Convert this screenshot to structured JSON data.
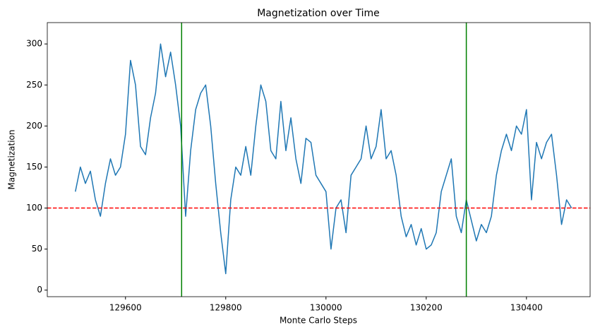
{
  "chart_data": {
    "type": "line",
    "title": "Magnetization over Time",
    "xlabel": "Monte Carlo Steps",
    "ylabel": "Magnetization",
    "x": [
      129500,
      129510,
      129520,
      129530,
      129540,
      129550,
      129560,
      129570,
      129580,
      129590,
      129600,
      129610,
      129620,
      129630,
      129640,
      129650,
      129660,
      129670,
      129680,
      129690,
      129700,
      129710,
      129720,
      129730,
      129740,
      129750,
      129760,
      129770,
      129780,
      129790,
      129800,
      129810,
      129820,
      129830,
      129840,
      129850,
      129860,
      129870,
      129880,
      129890,
      129900,
      129910,
      129920,
      129930,
      129940,
      129950,
      129960,
      129970,
      129980,
      129990,
      130000,
      130010,
      130020,
      130030,
      130040,
      130050,
      130060,
      130070,
      130080,
      130090,
      130100,
      130110,
      130120,
      130130,
      130140,
      130150,
      130160,
      130170,
      130180,
      130190,
      130200,
      130210,
      130220,
      130230,
      130240,
      130250,
      130260,
      130270,
      130280,
      130290,
      130300,
      130310,
      130320,
      130330,
      130340,
      130350,
      130360,
      130370,
      130380,
      130390,
      130400,
      130410,
      130420,
      130430,
      130440,
      130450,
      130460,
      130470,
      130480,
      130490
    ],
    "series": [
      {
        "color": "#1f77b4",
        "values": [
          120,
          150,
          130,
          145,
          110,
          90,
          130,
          160,
          140,
          150,
          190,
          280,
          250,
          175,
          165,
          210,
          240,
          300,
          260,
          290,
          250,
          200,
          90,
          170,
          220,
          240,
          250,
          200,
          130,
          70,
          20,
          110,
          150,
          140,
          175,
          140,
          200,
          250,
          230,
          170,
          160,
          230,
          170,
          210,
          160,
          130,
          185,
          180,
          140,
          130,
          120,
          50,
          100,
          110,
          70,
          140,
          150,
          160,
          200,
          160,
          175,
          220,
          160,
          170,
          140,
          90,
          65,
          80,
          55,
          75,
          50,
          55,
          70,
          120,
          140,
          160,
          90,
          70,
          110,
          85,
          60,
          80,
          70,
          90,
          140,
          170,
          190,
          170,
          200,
          190,
          220,
          110,
          180,
          160,
          180,
          190,
          140,
          80,
          110,
          100
        ]
      }
    ],
    "vlines": [
      {
        "x": 129712,
        "color": "green"
      },
      {
        "x": 130280,
        "color": "green"
      }
    ],
    "hline": {
      "y": 100,
      "color": "red",
      "style": "dashed"
    },
    "xlim": [
      129444,
      130527
    ],
    "ylim": [
      -8,
      326
    ],
    "xticks": [
      129600,
      129800,
      130000,
      130200,
      130400
    ],
    "yticks": [
      0,
      50,
      100,
      150,
      200,
      250,
      300
    ],
    "grid": false
  }
}
